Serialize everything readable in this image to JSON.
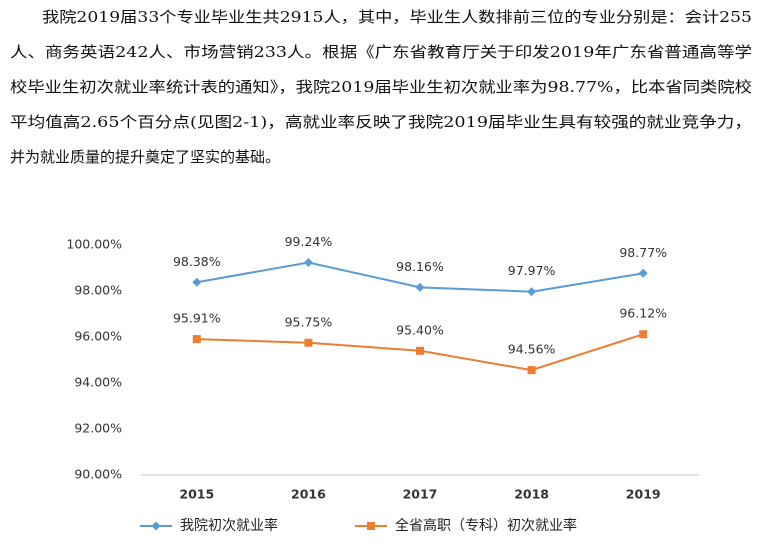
{
  "paragraph": {
    "lines": [
      "我院2019届33个专业毕业生共2915人，其中，毕业生人数排前三位的专业分别是：会计255",
      "人、商务英语242人、市场营销233人。根据《广东省教育厅关于印发2019年广东省普通高等学",
      "校毕业生初次就业率统计表的通知》，我院2019届毕业生初次就业率为98.77%，比本省同类院校",
      "平均值高2.65个百分点(见图2-1)，高就业率反映了我院2019届毕业生具有较强的就业竞争力，",
      "并为就业质量的提升奠定了坚实的基础。"
    ]
  },
  "chart_data": {
    "type": "line",
    "categories": [
      "2015",
      "2016",
      "2017",
      "2018",
      "2019"
    ],
    "series": [
      {
        "name": "我院初次就业率",
        "color": "#5b9bd5",
        "marker": "diamond",
        "values": [
          98.38,
          99.24,
          98.16,
          97.97,
          98.77
        ],
        "value_labels": [
          "98.38%",
          "99.24%",
          "98.16%",
          "97.97%",
          "98.77%"
        ]
      },
      {
        "name": "全省高职（专科）初次就业率",
        "color": "#ed7d31",
        "marker": "square",
        "values": [
          95.91,
          95.75,
          95.4,
          94.56,
          96.12
        ],
        "value_labels": [
          "95.91%",
          "95.75%",
          "95.40%",
          "94.56%",
          "96.12%"
        ]
      }
    ],
    "ylim": [
      90,
      100
    ],
    "yticks": [
      {
        "value": 90,
        "label": "90.00%"
      },
      {
        "value": 92,
        "label": "92.00%"
      },
      {
        "value": 94,
        "label": "94.00%"
      },
      {
        "value": 96,
        "label": "96.00%"
      },
      {
        "value": 98,
        "label": "98.00%"
      },
      {
        "value": 100,
        "label": "100.00%"
      }
    ],
    "grid": false,
    "legend": "bottom"
  }
}
